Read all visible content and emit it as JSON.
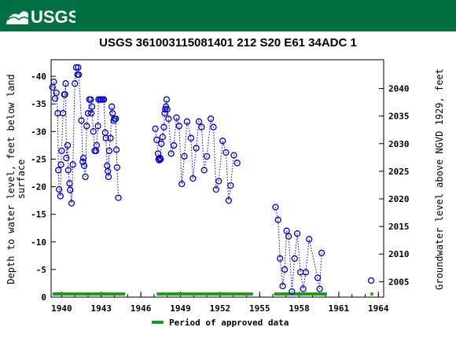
{
  "header": {
    "logo_text": "USGS",
    "bg_color": "#006f41"
  },
  "chart_data": {
    "type": "scatter",
    "title": "USGS 361003115081401 212  S20 E61 34ADC 1",
    "ylabel_left": "Depth to water level, feet below land surface",
    "ylabel_right": "Groundwater level above NGVD 1929, feet",
    "xlim": [
      1939.2,
      1964.4
    ],
    "ylim_left": [
      0,
      -43
    ],
    "ylim_right": [
      2002.2,
      2045.2
    ],
    "y_inverted": true,
    "x_ticks": [
      "1940",
      "1943",
      "1946",
      "1949",
      "1952",
      "1955",
      "1958",
      "1961",
      "1964"
    ],
    "y_ticks_left": [
      "0",
      "-5",
      "-10",
      "-15",
      "-20",
      "-25",
      "-30",
      "-35",
      "-40"
    ],
    "y_ticks_right": [
      "2005",
      "2010",
      "2015",
      "2020",
      "2025",
      "2030",
      "2035",
      "2040"
    ],
    "grid": false,
    "series_color": "#0000cc",
    "approved_color": "#1a9e1a",
    "legend": {
      "label": "Period of approved data",
      "placement": "bottom"
    },
    "approved_periods": [
      [
        1939.3,
        1944.8
      ],
      [
        1947.2,
        1954.5
      ],
      [
        1956.1,
        1960.1
      ],
      [
        1963.4,
        1963.6
      ]
    ],
    "series": [
      {
        "values": [
          [
            1939.3,
            -38
          ],
          [
            1939.4,
            -39
          ],
          [
            1939.5,
            -36
          ],
          [
            1939.6,
            -37
          ],
          [
            1939.7,
            -33.3
          ],
          [
            1939.75,
            -23
          ],
          [
            1939.8,
            -19.5
          ],
          [
            1939.9,
            -18.3
          ],
          [
            1939.95,
            -24
          ],
          [
            1940.0,
            -26.5
          ],
          [
            1940.1,
            -33.3
          ],
          [
            1940.2,
            -36.7
          ],
          [
            1940.25,
            -36.7
          ],
          [
            1940.3,
            -38.7
          ],
          [
            1940.35,
            -25.2
          ],
          [
            1940.45,
            -27.5
          ],
          [
            1940.5,
            -23
          ],
          [
            1940.6,
            -20.6
          ],
          [
            1940.65,
            -19.4
          ],
          [
            1940.75,
            -17
          ],
          [
            1940.85,
            -24
          ],
          [
            1941.0,
            -38.7
          ],
          [
            1941.1,
            -41.6
          ],
          [
            1941.2,
            -40.3
          ],
          [
            1941.25,
            -41.6
          ],
          [
            1941.3,
            -40.3
          ],
          [
            1941.5,
            -32
          ],
          [
            1941.6,
            -24.5
          ],
          [
            1941.65,
            -25.2
          ],
          [
            1941.7,
            -23.8
          ],
          [
            1941.8,
            -21.8
          ],
          [
            1941.9,
            -31
          ],
          [
            1942.0,
            -33.3
          ],
          [
            1942.1,
            -35.8
          ],
          [
            1942.2,
            -35.8
          ],
          [
            1942.25,
            -33.3
          ],
          [
            1942.3,
            -34.5
          ],
          [
            1942.4,
            -30
          ],
          [
            1942.5,
            -26.5
          ],
          [
            1942.6,
            -26.5
          ],
          [
            1942.65,
            -27.5
          ],
          [
            1942.75,
            -31
          ],
          [
            1942.8,
            -35.8
          ],
          [
            1942.9,
            -35.8
          ],
          [
            1943.0,
            -35.8
          ],
          [
            1943.1,
            -35.8
          ],
          [
            1943.2,
            -35.8
          ],
          [
            1943.3,
            -29.8
          ],
          [
            1943.35,
            -28.8
          ],
          [
            1943.45,
            -23.8
          ],
          [
            1943.5,
            -22.8
          ],
          [
            1943.55,
            -21.8
          ],
          [
            1943.6,
            -26.5
          ],
          [
            1943.7,
            -28.8
          ],
          [
            1943.8,
            -34.5
          ],
          [
            1943.85,
            -33.3
          ],
          [
            1943.95,
            -32
          ],
          [
            1944.0,
            -32.3
          ],
          [
            1944.1,
            -32.3
          ],
          [
            1944.15,
            -26.7
          ],
          [
            1944.2,
            -23.5
          ],
          [
            1944.3,
            -18
          ]
        ]
      },
      {
        "values": [
          [
            1947.1,
            -30.5
          ],
          [
            1947.2,
            -28.5
          ],
          [
            1947.3,
            -26
          ],
          [
            1947.35,
            -25
          ],
          [
            1947.4,
            -24.8
          ],
          [
            1947.45,
            -25.2
          ],
          [
            1947.5,
            -25
          ],
          [
            1947.55,
            -27.8
          ],
          [
            1947.65,
            -29
          ],
          [
            1947.75,
            -30.8
          ],
          [
            1947.8,
            -33.3
          ],
          [
            1947.85,
            -34
          ],
          [
            1947.9,
            -34.5
          ],
          [
            1947.95,
            -35.8
          ],
          [
            1948.0,
            -34
          ],
          [
            1948.1,
            -32.3
          ],
          [
            1948.3,
            -26
          ],
          [
            1948.5,
            -27.5
          ],
          [
            1948.7,
            -32.5
          ],
          [
            1948.9,
            -31
          ],
          [
            1949.1,
            -20.5
          ],
          [
            1949.3,
            -25.5
          ],
          [
            1949.5,
            -31.8
          ],
          [
            1949.8,
            -28.8
          ],
          [
            1949.95,
            -21.5
          ],
          [
            1950.2,
            -27
          ],
          [
            1950.4,
            -31.8
          ],
          [
            1950.6,
            -30.8
          ],
          [
            1950.8,
            -23
          ],
          [
            1951.0,
            -25.5
          ],
          [
            1951.3,
            -32.3
          ],
          [
            1951.5,
            -30.8
          ],
          [
            1951.7,
            -19.5
          ],
          [
            1951.9,
            -21
          ],
          [
            1952.2,
            -28.3
          ],
          [
            1952.45,
            -26.2
          ],
          [
            1952.65,
            -17.5
          ],
          [
            1952.8,
            -20.2
          ],
          [
            1953.05,
            -25.7
          ],
          [
            1953.3,
            -24.3
          ]
        ]
      },
      {
        "values": [
          [
            1956.2,
            -16.3
          ],
          [
            1956.4,
            -14
          ],
          [
            1956.55,
            -7
          ],
          [
            1956.75,
            -2
          ],
          [
            1956.9,
            -5
          ],
          [
            1957.05,
            -12
          ],
          [
            1957.2,
            -11
          ],
          [
            1957.45,
            -1
          ],
          [
            1957.65,
            -7
          ],
          [
            1957.85,
            -11.5
          ],
          [
            1958.1,
            -4.5
          ],
          [
            1958.3,
            -1.5
          ],
          [
            1958.5,
            -4.5
          ],
          [
            1958.75,
            -10.5
          ],
          [
            1959.4,
            -3.5
          ],
          [
            1959.55,
            -1.5
          ],
          [
            1959.7,
            -8
          ]
        ]
      },
      {
        "values": [
          [
            1963.45,
            -3
          ]
        ]
      }
    ]
  }
}
